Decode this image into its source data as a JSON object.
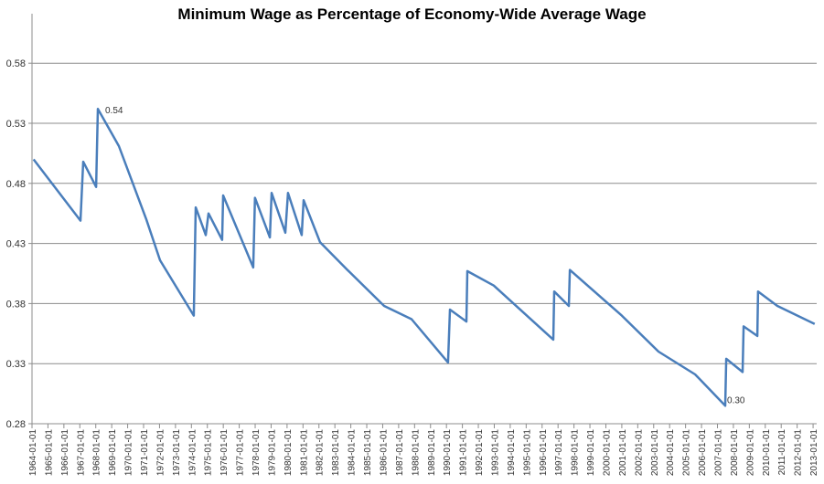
{
  "chart_data": {
    "type": "line",
    "title": "Minimum Wage as Percentage of Economy-Wide Average Wage",
    "xlabel": "",
    "ylabel": "",
    "ylim": [
      0.28,
      0.62
    ],
    "y_ticks": [
      "0.28",
      "0.33",
      "0.38",
      "0.43",
      "0.48",
      "0.53",
      "0.58"
    ],
    "x_ticks": [
      "1964-01-01",
      "1965-01-01",
      "1966-01-01",
      "1967-01-01",
      "1968-01-01",
      "1969-01-01",
      "1970-01-01",
      "1971-01-01",
      "1972-01-01",
      "1973-01-01",
      "1974-01-01",
      "1975-01-01",
      "1976-01-01",
      "1977-01-01",
      "1978-01-01",
      "1979-01-01",
      "1980-01-01",
      "1981-01-01",
      "1982-01-01",
      "1983-01-01",
      "1984-01-01",
      "1985-01-01",
      "1986-01-01",
      "1987-01-01",
      "1988-01-01",
      "1989-01-01",
      "1990-01-01",
      "1991-01-01",
      "1992-01-01",
      "1993-01-01",
      "1994-01-01",
      "1995-01-01",
      "1996-01-01",
      "1997-01-01",
      "1998-01-01",
      "1999-01-01",
      "2000-01-01",
      "2001-01-01",
      "2002-01-01",
      "2003-01-01",
      "2004-01-01",
      "2005-01-01",
      "2006-01-01",
      "2007-01-01",
      "2008-01-01",
      "2009-01-01",
      "2010-01-01",
      "2011-01-01",
      "2012-01-01",
      "2013-01-01"
    ],
    "grid": "horizontal",
    "line_color": "#4a7ebb",
    "series": [
      {
        "x": [
          1964.1,
          1967.04,
          1967.21,
          1968.02,
          1968.13,
          1969.45,
          1971.17,
          1972.03,
          1974.15,
          1974.27,
          1974.9,
          1975.07,
          1975.93,
          1975.99,
          1977.88,
          1977.99,
          1978.92,
          1979.03,
          1979.89,
          1980.06,
          1980.92,
          1981.04,
          1982.07,
          1983.79,
          1986.09,
          1987.81,
          1990.1,
          1990.22,
          1991.25,
          1991.31,
          1992.97,
          1996.7,
          1996.76,
          1997.68,
          1997.74,
          2001.0,
          2003.3,
          2005.6,
          2007.49,
          2007.55,
          2008.58,
          2008.64,
          2009.5,
          2009.55,
          2010.76,
          2013.1
        ],
        "y": [
          0.5,
          0.449,
          0.498,
          0.477,
          0.542,
          0.511,
          0.45,
          0.416,
          0.37,
          0.46,
          0.437,
          0.455,
          0.433,
          0.47,
          0.41,
          0.468,
          0.435,
          0.472,
          0.439,
          0.472,
          0.437,
          0.466,
          0.431,
          0.408,
          0.378,
          0.367,
          0.331,
          0.375,
          0.365,
          0.407,
          0.395,
          0.35,
          0.39,
          0.378,
          0.408,
          0.37,
          0.34,
          0.321,
          0.295,
          0.334,
          0.323,
          0.361,
          0.353,
          0.39,
          0.378,
          0.363
        ]
      }
    ],
    "annotations": [
      {
        "text": "0.54",
        "x": 1968.13,
        "y": 0.542
      },
      {
        "text": "0.30",
        "x": 2007.49,
        "y": 0.295
      }
    ]
  }
}
